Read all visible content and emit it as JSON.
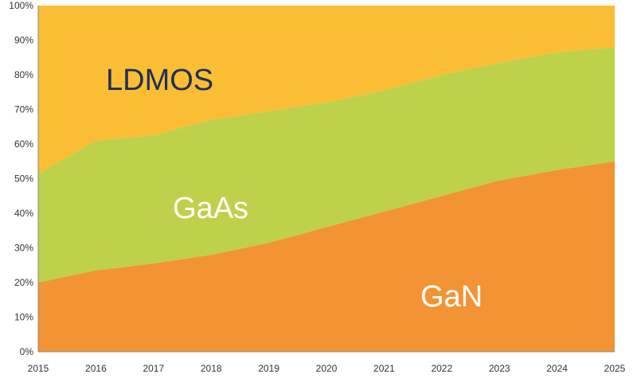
{
  "chart_data": {
    "type": "area",
    "stacked": true,
    "percent_scale": true,
    "x": [
      2015,
      2016,
      2017,
      2018,
      2019,
      2020,
      2021,
      2022,
      2023,
      2024,
      2025
    ],
    "x_tick_labels": [
      "2015",
      "2016",
      "2017",
      "2018",
      "2019",
      "2020",
      "2021",
      "2022",
      "2023",
      "2024",
      "2025"
    ],
    "y_tick_labels": [
      "0%",
      "10%",
      "20%",
      "30%",
      "40%",
      "50%",
      "60%",
      "70%",
      "80%",
      "90%",
      "100%"
    ],
    "ylim": [
      0,
      100
    ],
    "grid": false,
    "legend": "none",
    "series": [
      {
        "name": "GaN",
        "color": "#f29434",
        "label_color": "#ffffff",
        "values": [
          20,
          23.5,
          25.5,
          28,
          31.5,
          36,
          40.5,
          45,
          49.5,
          52.5,
          55
        ]
      },
      {
        "name": "GaAs",
        "color": "#bed14a",
        "label_color": "#ffffff",
        "values": [
          31.5,
          37.5,
          37,
          39,
          38,
          36,
          35,
          35,
          34,
          34,
          33
        ]
      },
      {
        "name": "LDMOS",
        "color": "#fbbd34",
        "label_color": "#1f2f5a",
        "values": [
          48.5,
          39,
          37.5,
          33,
          30.5,
          28,
          24.5,
          20,
          16.5,
          13.5,
          12
        ]
      }
    ]
  }
}
